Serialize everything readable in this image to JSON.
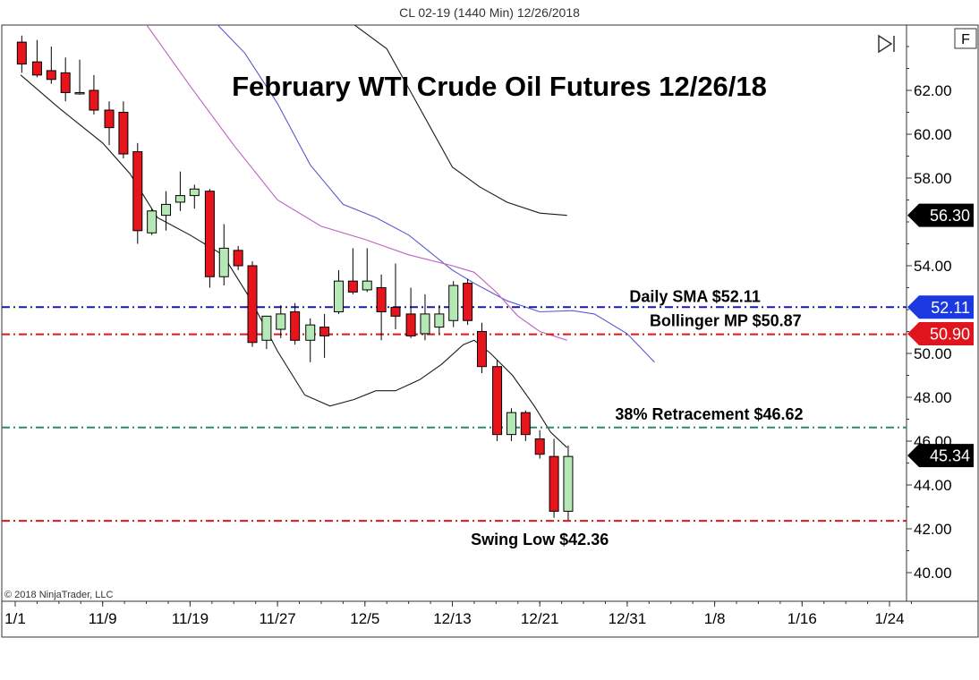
{
  "header": {
    "instrument": "CL 02-19 (1440 Min)  12/26/2018"
  },
  "copyright": "© 2018 NinjaTrader, LLC",
  "toolbar": {
    "f_label": "F"
  },
  "colors": {
    "up_candle": "#b5e8b5",
    "down_candle": "#e8141c",
    "sma_line": "#1a1aa0",
    "bollinger_line": "#e0141c",
    "retracement_line": "#2a8a6a",
    "swing_low_line": "#e0141c",
    "marker_black": "#000000",
    "marker_blue": "#1a3ae0",
    "marker_red": "#e0141c",
    "ma_fast": "#1a1a1a",
    "ma_blue": "#5a5ad0",
    "ma_pink": "#c060c0",
    "ma_slow": "#1a1a1a"
  },
  "chart_data": {
    "type": "candlestick",
    "title": "February WTI Crude Oil Futures 12/26/18",
    "ylim": [
      39,
      65
    ],
    "y_ticks": [
      "40.00",
      "42.00",
      "44.00",
      "46.00",
      "48.00",
      "50.00",
      "54.00",
      "58.00",
      "60.00",
      "62.00"
    ],
    "x_range": [
      0,
      85
    ],
    "x_ticks": [
      {
        "label": "1/1",
        "x": 0
      },
      {
        "label": "11/9",
        "x": 8
      },
      {
        "label": "11/19",
        "x": 16
      },
      {
        "label": "11/27",
        "x": 24
      },
      {
        "label": "12/5",
        "x": 32
      },
      {
        "label": "12/13",
        "x": 40
      },
      {
        "label": "12/21",
        "x": 48
      },
      {
        "label": "12/31",
        "x": 56
      },
      {
        "label": "1/8",
        "x": 64
      },
      {
        "label": "1/16",
        "x": 72
      },
      {
        "label": "1/24",
        "x": 80
      }
    ],
    "candles": [
      {
        "x": 0.6,
        "o": 64.2,
        "h": 64.5,
        "l": 62.8,
        "c": 63.2
      },
      {
        "x": 2.0,
        "o": 63.3,
        "h": 64.3,
        "l": 62.6,
        "c": 62.7
      },
      {
        "x": 3.3,
        "o": 62.9,
        "h": 64.0,
        "l": 62.3,
        "c": 62.5
      },
      {
        "x": 4.6,
        "o": 62.8,
        "h": 63.5,
        "l": 61.5,
        "c": 61.9
      },
      {
        "x": 5.9,
        "o": 61.9,
        "h": 63.4,
        "l": 61.8,
        "c": 61.9
      },
      {
        "x": 7.2,
        "o": 62.0,
        "h": 62.7,
        "l": 60.9,
        "c": 61.1
      },
      {
        "x": 8.6,
        "o": 61.1,
        "h": 61.5,
        "l": 59.5,
        "c": 60.3
      },
      {
        "x": 9.9,
        "o": 61.0,
        "h": 61.5,
        "l": 58.9,
        "c": 59.1
      },
      {
        "x": 11.2,
        "o": 59.2,
        "h": 59.6,
        "l": 55.0,
        "c": 55.6
      },
      {
        "x": 12.5,
        "o": 55.5,
        "h": 56.6,
        "l": 55.4,
        "c": 56.5
      },
      {
        "x": 13.8,
        "o": 56.3,
        "h": 57.4,
        "l": 55.6,
        "c": 56.8
      },
      {
        "x": 15.1,
        "o": 56.9,
        "h": 58.3,
        "l": 56.5,
        "c": 57.2
      },
      {
        "x": 16.4,
        "o": 57.2,
        "h": 57.7,
        "l": 56.6,
        "c": 57.5
      },
      {
        "x": 17.8,
        "o": 57.4,
        "h": 57.5,
        "l": 53.0,
        "c": 53.5
      },
      {
        "x": 19.1,
        "o": 53.5,
        "h": 55.9,
        "l": 53.1,
        "c": 54.8
      },
      {
        "x": 20.4,
        "o": 54.7,
        "h": 54.9,
        "l": 53.8,
        "c": 54.0
      },
      {
        "x": 21.7,
        "o": 54.0,
        "h": 54.2,
        "l": 50.3,
        "c": 50.5
      },
      {
        "x": 23.0,
        "o": 50.6,
        "h": 51.7,
        "l": 50.2,
        "c": 51.7
      },
      {
        "x": 24.3,
        "o": 51.1,
        "h": 52.2,
        "l": 50.7,
        "c": 51.8
      },
      {
        "x": 25.6,
        "o": 51.9,
        "h": 52.3,
        "l": 50.4,
        "c": 50.6
      },
      {
        "x": 27.0,
        "o": 50.6,
        "h": 51.6,
        "l": 49.6,
        "c": 51.3
      },
      {
        "x": 28.3,
        "o": 51.2,
        "h": 51.8,
        "l": 49.8,
        "c": 50.8
      },
      {
        "x": 29.6,
        "o": 51.9,
        "h": 53.8,
        "l": 51.8,
        "c": 53.3
      },
      {
        "x": 30.9,
        "o": 53.3,
        "h": 54.8,
        "l": 52.7,
        "c": 52.8
      },
      {
        "x": 32.2,
        "o": 52.9,
        "h": 54.8,
        "l": 52.8,
        "c": 53.3
      },
      {
        "x": 33.5,
        "o": 53.0,
        "h": 53.6,
        "l": 50.6,
        "c": 51.9
      },
      {
        "x": 34.8,
        "o": 52.1,
        "h": 54.1,
        "l": 51.1,
        "c": 51.7
      },
      {
        "x": 36.2,
        "o": 51.8,
        "h": 53.0,
        "l": 50.7,
        "c": 50.8
      },
      {
        "x": 37.5,
        "o": 50.9,
        "h": 52.7,
        "l": 50.6,
        "c": 51.8
      },
      {
        "x": 38.8,
        "o": 51.2,
        "h": 52.2,
        "l": 50.9,
        "c": 51.8
      },
      {
        "x": 40.1,
        "o": 51.5,
        "h": 53.3,
        "l": 51.2,
        "c": 53.1
      },
      {
        "x": 41.4,
        "o": 53.2,
        "h": 53.4,
        "l": 51.3,
        "c": 51.5
      },
      {
        "x": 42.7,
        "o": 51.0,
        "h": 51.4,
        "l": 49.1,
        "c": 49.4
      },
      {
        "x": 44.1,
        "o": 49.4,
        "h": 49.7,
        "l": 46.0,
        "c": 46.3
      },
      {
        "x": 45.4,
        "o": 46.3,
        "h": 47.5,
        "l": 46.0,
        "c": 47.3
      },
      {
        "x": 46.7,
        "o": 47.3,
        "h": 47.4,
        "l": 46.0,
        "c": 46.3
      },
      {
        "x": 48.0,
        "o": 46.1,
        "h": 46.5,
        "l": 45.2,
        "c": 45.4
      },
      {
        "x": 49.3,
        "o": 45.3,
        "h": 46.1,
        "l": 42.5,
        "c": 42.8
      },
      {
        "x": 50.6,
        "o": 42.8,
        "h": 45.8,
        "l": 42.4,
        "c": 45.3
      }
    ],
    "moving_averages": [
      {
        "color_key": "ma_fast",
        "points": [
          [
            0.5,
            62.7
          ],
          [
            4.0,
            61.2
          ],
          [
            8.0,
            59.6
          ],
          [
            10.5,
            58.2
          ],
          [
            13.0,
            56.2
          ],
          [
            16.0,
            55.4
          ],
          [
            19.0,
            54.5
          ],
          [
            21.5,
            52.5
          ],
          [
            24.0,
            50.1
          ],
          [
            26.5,
            48.1
          ],
          [
            28.8,
            47.6
          ],
          [
            31.0,
            47.9
          ],
          [
            33.0,
            48.3
          ],
          [
            34.8,
            48.3
          ],
          [
            37.0,
            48.8
          ],
          [
            39.0,
            49.5
          ],
          [
            41.0,
            50.4
          ],
          [
            42.0,
            50.6
          ],
          [
            43.5,
            50.0
          ],
          [
            45.5,
            49.0
          ],
          [
            47.5,
            47.6
          ],
          [
            49.0,
            46.4
          ],
          [
            50.5,
            45.7
          ]
        ]
      },
      {
        "color_key": "ma_blue",
        "points": [
          [
            18.5,
            65.0
          ],
          [
            21.0,
            63.7
          ],
          [
            24.0,
            61.4
          ],
          [
            27.0,
            58.6
          ],
          [
            30.0,
            56.8
          ],
          [
            33.0,
            56.2
          ],
          [
            36.0,
            55.4
          ],
          [
            38.0,
            54.6
          ],
          [
            40.0,
            53.8
          ],
          [
            42.0,
            53.2
          ],
          [
            45.0,
            52.4
          ],
          [
            48.0,
            51.9
          ],
          [
            51.0,
            51.95
          ],
          [
            53.0,
            51.8
          ],
          [
            56.0,
            50.9
          ],
          [
            58.5,
            49.6
          ]
        ]
      },
      {
        "color_key": "ma_pink",
        "points": [
          [
            12.0,
            65.0
          ],
          [
            16.0,
            62.2
          ],
          [
            20.0,
            59.5
          ],
          [
            24.0,
            57.0
          ],
          [
            28.0,
            55.8
          ],
          [
            32.0,
            55.2
          ],
          [
            36.0,
            54.5
          ],
          [
            40.0,
            54.0
          ],
          [
            42.0,
            53.7
          ],
          [
            44.0,
            52.8
          ],
          [
            46.0,
            51.7
          ],
          [
            48.0,
            51.0
          ],
          [
            50.5,
            50.6
          ]
        ]
      },
      {
        "color_key": "ma_slow",
        "points": [
          [
            31.0,
            65.0
          ],
          [
            34.0,
            63.9
          ],
          [
            37.0,
            61.2
          ],
          [
            40.0,
            58.5
          ],
          [
            42.5,
            57.6
          ],
          [
            45.0,
            56.9
          ],
          [
            48.0,
            56.4
          ],
          [
            50.5,
            56.3
          ]
        ]
      }
    ],
    "horizontal_lines": [
      {
        "value": 52.11,
        "color_key": "sma_line",
        "label": "Daily SMA $52.11",
        "label_x": 62.2
      },
      {
        "value": 50.87,
        "color_key": "bollinger_line",
        "label": "Bollinger MP $50.87",
        "label_x": 65.0
      },
      {
        "value": 46.62,
        "color_key": "retracement_line",
        "label": "38% Retracement $46.62",
        "label_x": 63.5
      },
      {
        "value": 42.36,
        "color_key": "swing_low_line",
        "label": "Swing Low $42.36",
        "label_x": 48.0
      }
    ],
    "price_markers": [
      {
        "value": 56.3,
        "label": "56.30",
        "color_key": "marker_black"
      },
      {
        "value": 52.11,
        "label": "52.11",
        "color_key": "marker_blue"
      },
      {
        "value": 50.9,
        "label": "50.90",
        "color_key": "marker_red"
      },
      {
        "value": 45.34,
        "label": "45.34",
        "color_key": "marker_black"
      }
    ]
  }
}
